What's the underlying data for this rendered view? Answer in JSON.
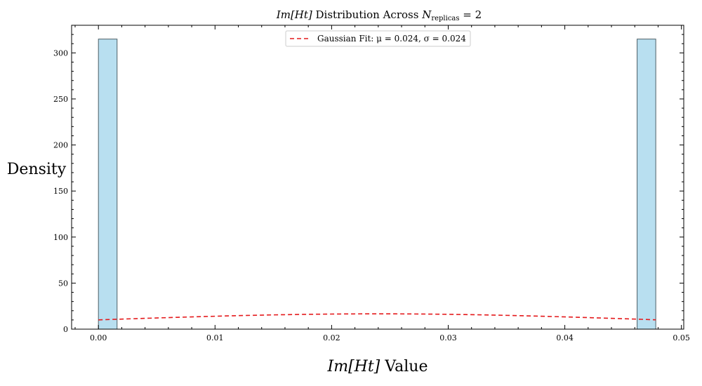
{
  "chart_data": {
    "type": "bar",
    "title": "Im[Ht] Distribution Across N_replicas = 2",
    "title_parts": {
      "quantity": "Im[Ht]",
      "middle": " Distribution Across ",
      "n_symbol": "N",
      "n_subscript": "replicas",
      "n_equals": " = 2"
    },
    "xlabel": "Im[Ht] Value",
    "xlabel_parts": {
      "quantity": "Im[Ht]",
      "suffix": " Value"
    },
    "ylabel": "Density",
    "xlim": [
      -0.0023,
      0.0502
    ],
    "ylim": [
      0,
      330
    ],
    "x_ticks": [
      0.0,
      0.01,
      0.02,
      0.03,
      0.04,
      0.05
    ],
    "x_tick_labels": [
      "0.00",
      "0.01",
      "0.02",
      "0.03",
      "0.04",
      "0.05"
    ],
    "y_ticks": [
      0,
      50,
      100,
      150,
      200,
      250,
      300
    ],
    "y_tick_labels": [
      "0",
      "50",
      "100",
      "150",
      "200",
      "250",
      "300"
    ],
    "bars": [
      {
        "x_start": 0.0,
        "x_end": 0.0016,
        "density": 315
      },
      {
        "x_start": 0.0462,
        "x_end": 0.0478,
        "density": 315
      }
    ],
    "fit": {
      "label": "Gaussian Fit: μ = 0.024, σ = 0.024",
      "mu": 0.024,
      "sigma": 0.024,
      "x_range": [
        0.0,
        0.0478
      ]
    },
    "legend_position": "upper center",
    "colors": {
      "bar_fill": "#b8dff0",
      "bar_edge": "#4d5f66",
      "fit_line": "#e41a1c",
      "axis": "#000000"
    }
  }
}
